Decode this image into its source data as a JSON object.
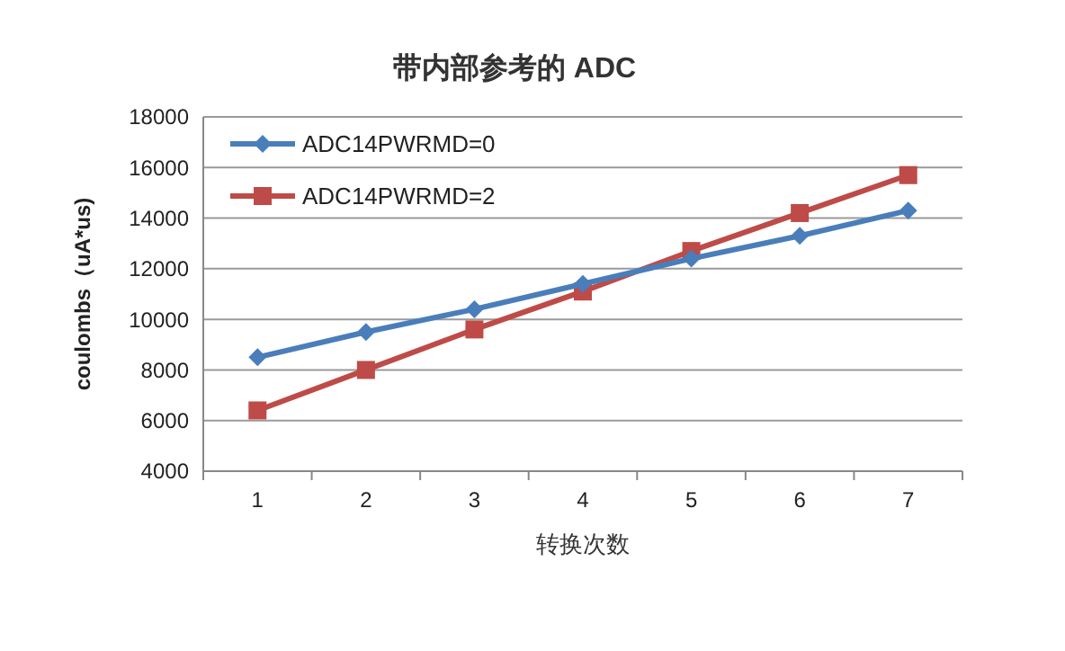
{
  "chart_data": {
    "type": "line",
    "title": "带内部参考的 ADC",
    "xlabel": "转换次数",
    "ylabel": "coulombs（uA*us)",
    "categories": [
      "1",
      "2",
      "3",
      "4",
      "5",
      "6",
      "7"
    ],
    "series": [
      {
        "name": "ADC14PWRMD=0",
        "color": "#4a7ebb",
        "marker": "diamond",
        "values": [
          8500,
          9500,
          10400,
          11400,
          12400,
          13300,
          14300
        ]
      },
      {
        "name": "ADC14PWRMD=2",
        "color": "#be4b48",
        "marker": "square",
        "values": [
          6400,
          8000,
          9600,
          11100,
          12700,
          14200,
          15700
        ]
      }
    ],
    "ylim": [
      4000,
      18000
    ],
    "yticks": [
      4000,
      6000,
      8000,
      10000,
      12000,
      14000,
      16000,
      18000
    ],
    "grid": "y",
    "legend": "top left",
    "line_style": "solid"
  }
}
